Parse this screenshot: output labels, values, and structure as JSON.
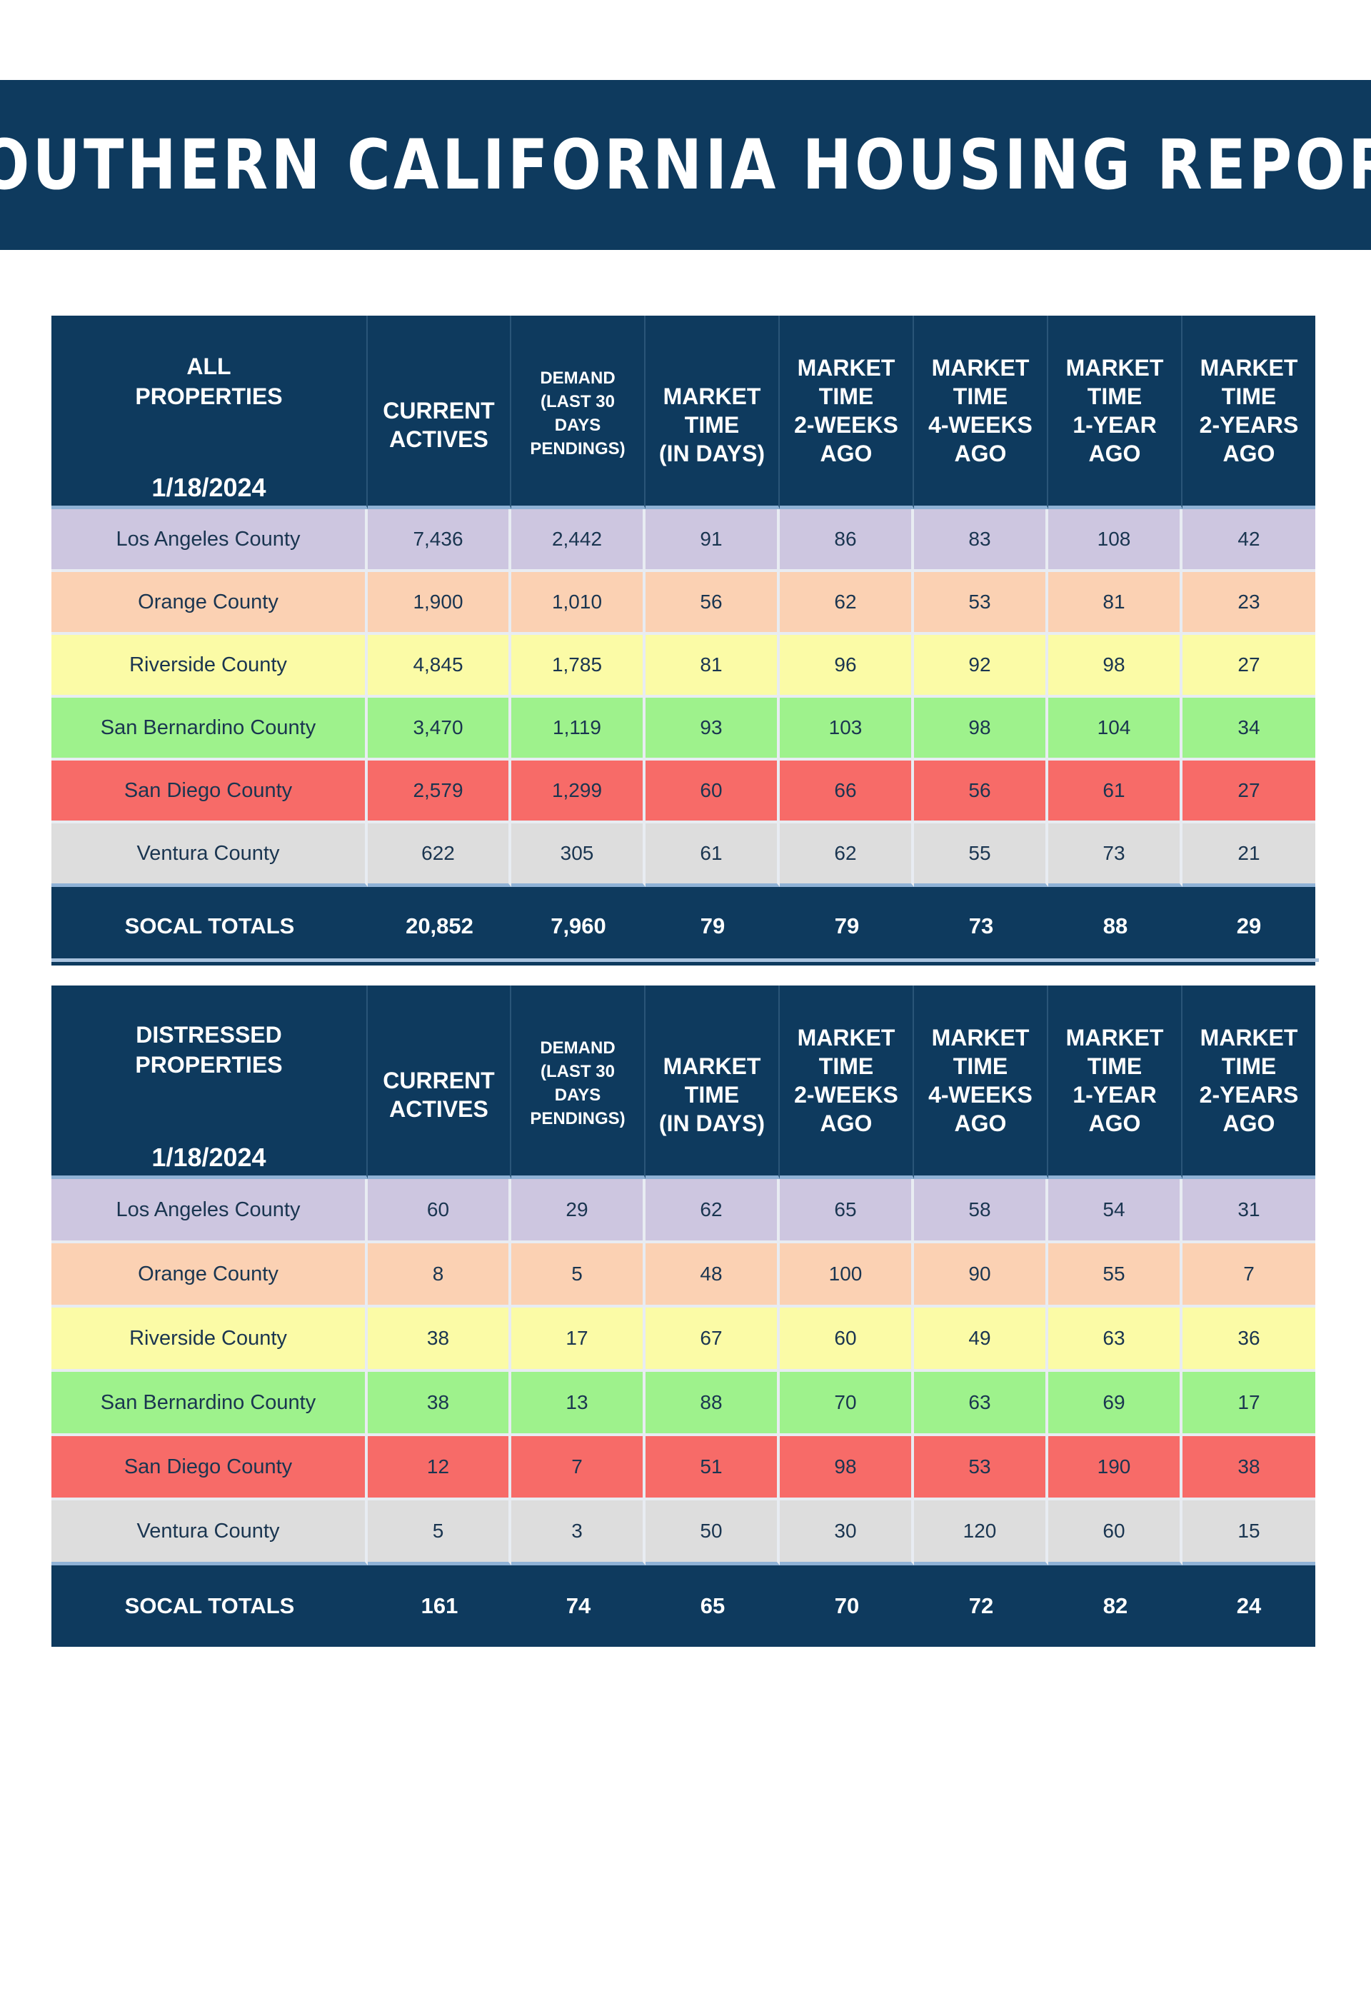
{
  "title": "SOUTHERN CALIFORNIA HOUSING REPORT",
  "column_headers": [
    [
      "CURRENT",
      "ACTIVES"
    ],
    [
      "DEMAND",
      "(LAST 30",
      "DAYS",
      "PENDINGS)"
    ],
    [
      "MARKET",
      "TIME",
      "(IN DAYS)"
    ],
    [
      "MARKET",
      "TIME",
      "2-WEEKS",
      "AGO"
    ],
    [
      "MARKET",
      "TIME",
      "4-WEEKS",
      "AGO"
    ],
    [
      "MARKET",
      "TIME",
      "1-YEAR",
      "AGO"
    ],
    [
      "MARKET",
      "TIME",
      "2-YEARS",
      "AGO"
    ]
  ],
  "row_colors": [
    "#cdc6e0",
    "#fbd1b3",
    "#fbfba6",
    "#9ef28c",
    "#f76b68",
    "#dddddd"
  ],
  "tables": [
    {
      "heading_lines": [
        "ALL",
        "PROPERTIES"
      ],
      "date": "1/18/2024",
      "rows": [
        {
          "county": "Los Angeles County",
          "values": [
            "7,436",
            "2,442",
            "91",
            "86",
            "83",
            "108",
            "42"
          ]
        },
        {
          "county": "Orange County",
          "values": [
            "1,900",
            "1,010",
            "56",
            "62",
            "53",
            "81",
            "23"
          ]
        },
        {
          "county": "Riverside County",
          "values": [
            "4,845",
            "1,785",
            "81",
            "96",
            "92",
            "98",
            "27"
          ]
        },
        {
          "county": "San Bernardino County",
          "values": [
            "3,470",
            "1,119",
            "93",
            "103",
            "98",
            "104",
            "34"
          ]
        },
        {
          "county": "San Diego County",
          "values": [
            "2,579",
            "1,299",
            "60",
            "66",
            "56",
            "61",
            "27"
          ]
        },
        {
          "county": "Ventura County",
          "values": [
            "622",
            "305",
            "61",
            "62",
            "55",
            "73",
            "21"
          ]
        }
      ],
      "totals": {
        "label": "SOCAL TOTALS",
        "values": [
          "20,852",
          "7,960",
          "79",
          "79",
          "73",
          "88",
          "29"
        ]
      }
    },
    {
      "heading_lines": [
        "DISTRESSED",
        "PROPERTIES"
      ],
      "date": "1/18/2024",
      "rows": [
        {
          "county": "Los Angeles County",
          "values": [
            "60",
            "29",
            "62",
            "65",
            "58",
            "54",
            "31"
          ]
        },
        {
          "county": "Orange County",
          "values": [
            "8",
            "5",
            "48",
            "100",
            "90",
            "55",
            "7"
          ]
        },
        {
          "county": "Riverside County",
          "values": [
            "38",
            "17",
            "67",
            "60",
            "49",
            "63",
            "36"
          ]
        },
        {
          "county": "San Bernardino County",
          "values": [
            "38",
            "13",
            "88",
            "70",
            "63",
            "69",
            "17"
          ]
        },
        {
          "county": "San Diego County",
          "values": [
            "12",
            "7",
            "51",
            "98",
            "53",
            "190",
            "38"
          ]
        },
        {
          "county": "Ventura County",
          "values": [
            "5",
            "3",
            "50",
            "30",
            "120",
            "60",
            "15"
          ]
        }
      ],
      "totals": {
        "label": "SOCAL TOTALS",
        "values": [
          "161",
          "74",
          "65",
          "70",
          "72",
          "82",
          "24"
        ]
      }
    }
  ]
}
